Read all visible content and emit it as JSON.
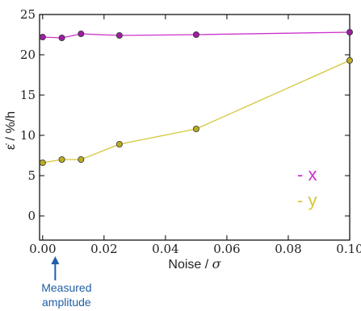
{
  "chart_data": {
    "type": "line",
    "xlabel": "Noise / σ",
    "xlabel_main": "Noise / ",
    "xlabel_symbol": "σ",
    "ylabel": "ε̇ / %/h",
    "xlim": [
      -0.001,
      0.1
    ],
    "ylim": [
      -3,
      25
    ],
    "x_ticks": [
      0.0,
      0.02,
      0.04,
      0.06,
      0.08,
      0.1
    ],
    "x_tick_labels": [
      "0.00",
      "0.02",
      "0.04",
      "0.06",
      "0.08",
      "0.10"
    ],
    "y_ticks": [
      0,
      5,
      10,
      15,
      20,
      25
    ],
    "y_tick_labels": [
      "0",
      "5",
      "10",
      "15",
      "20",
      "25"
    ],
    "grid": false,
    "legend_position": "bottom-right",
    "series": [
      {
        "name": "x",
        "legend_label": "- x",
        "color": "#cc33cc",
        "marker_color": "#9b1fa0",
        "x": [
          0.0,
          0.00625,
          0.0125,
          0.025,
          0.05,
          0.1
        ],
        "y": [
          22.2,
          22.1,
          22.6,
          22.4,
          22.5,
          22.8
        ]
      },
      {
        "name": "y",
        "legend_label": "- y",
        "color": "#d4c73a",
        "marker_color": "#b8ad22",
        "x": [
          0.0,
          0.00625,
          0.0125,
          0.025,
          0.05,
          0.1
        ],
        "y": [
          6.6,
          7.0,
          7.0,
          8.9,
          10.8,
          19.3
        ]
      }
    ],
    "annotation": {
      "text_line1": "Measured",
      "text_line2": "amplitude",
      "x": 0.0012,
      "color": "#1f5fa6"
    }
  }
}
